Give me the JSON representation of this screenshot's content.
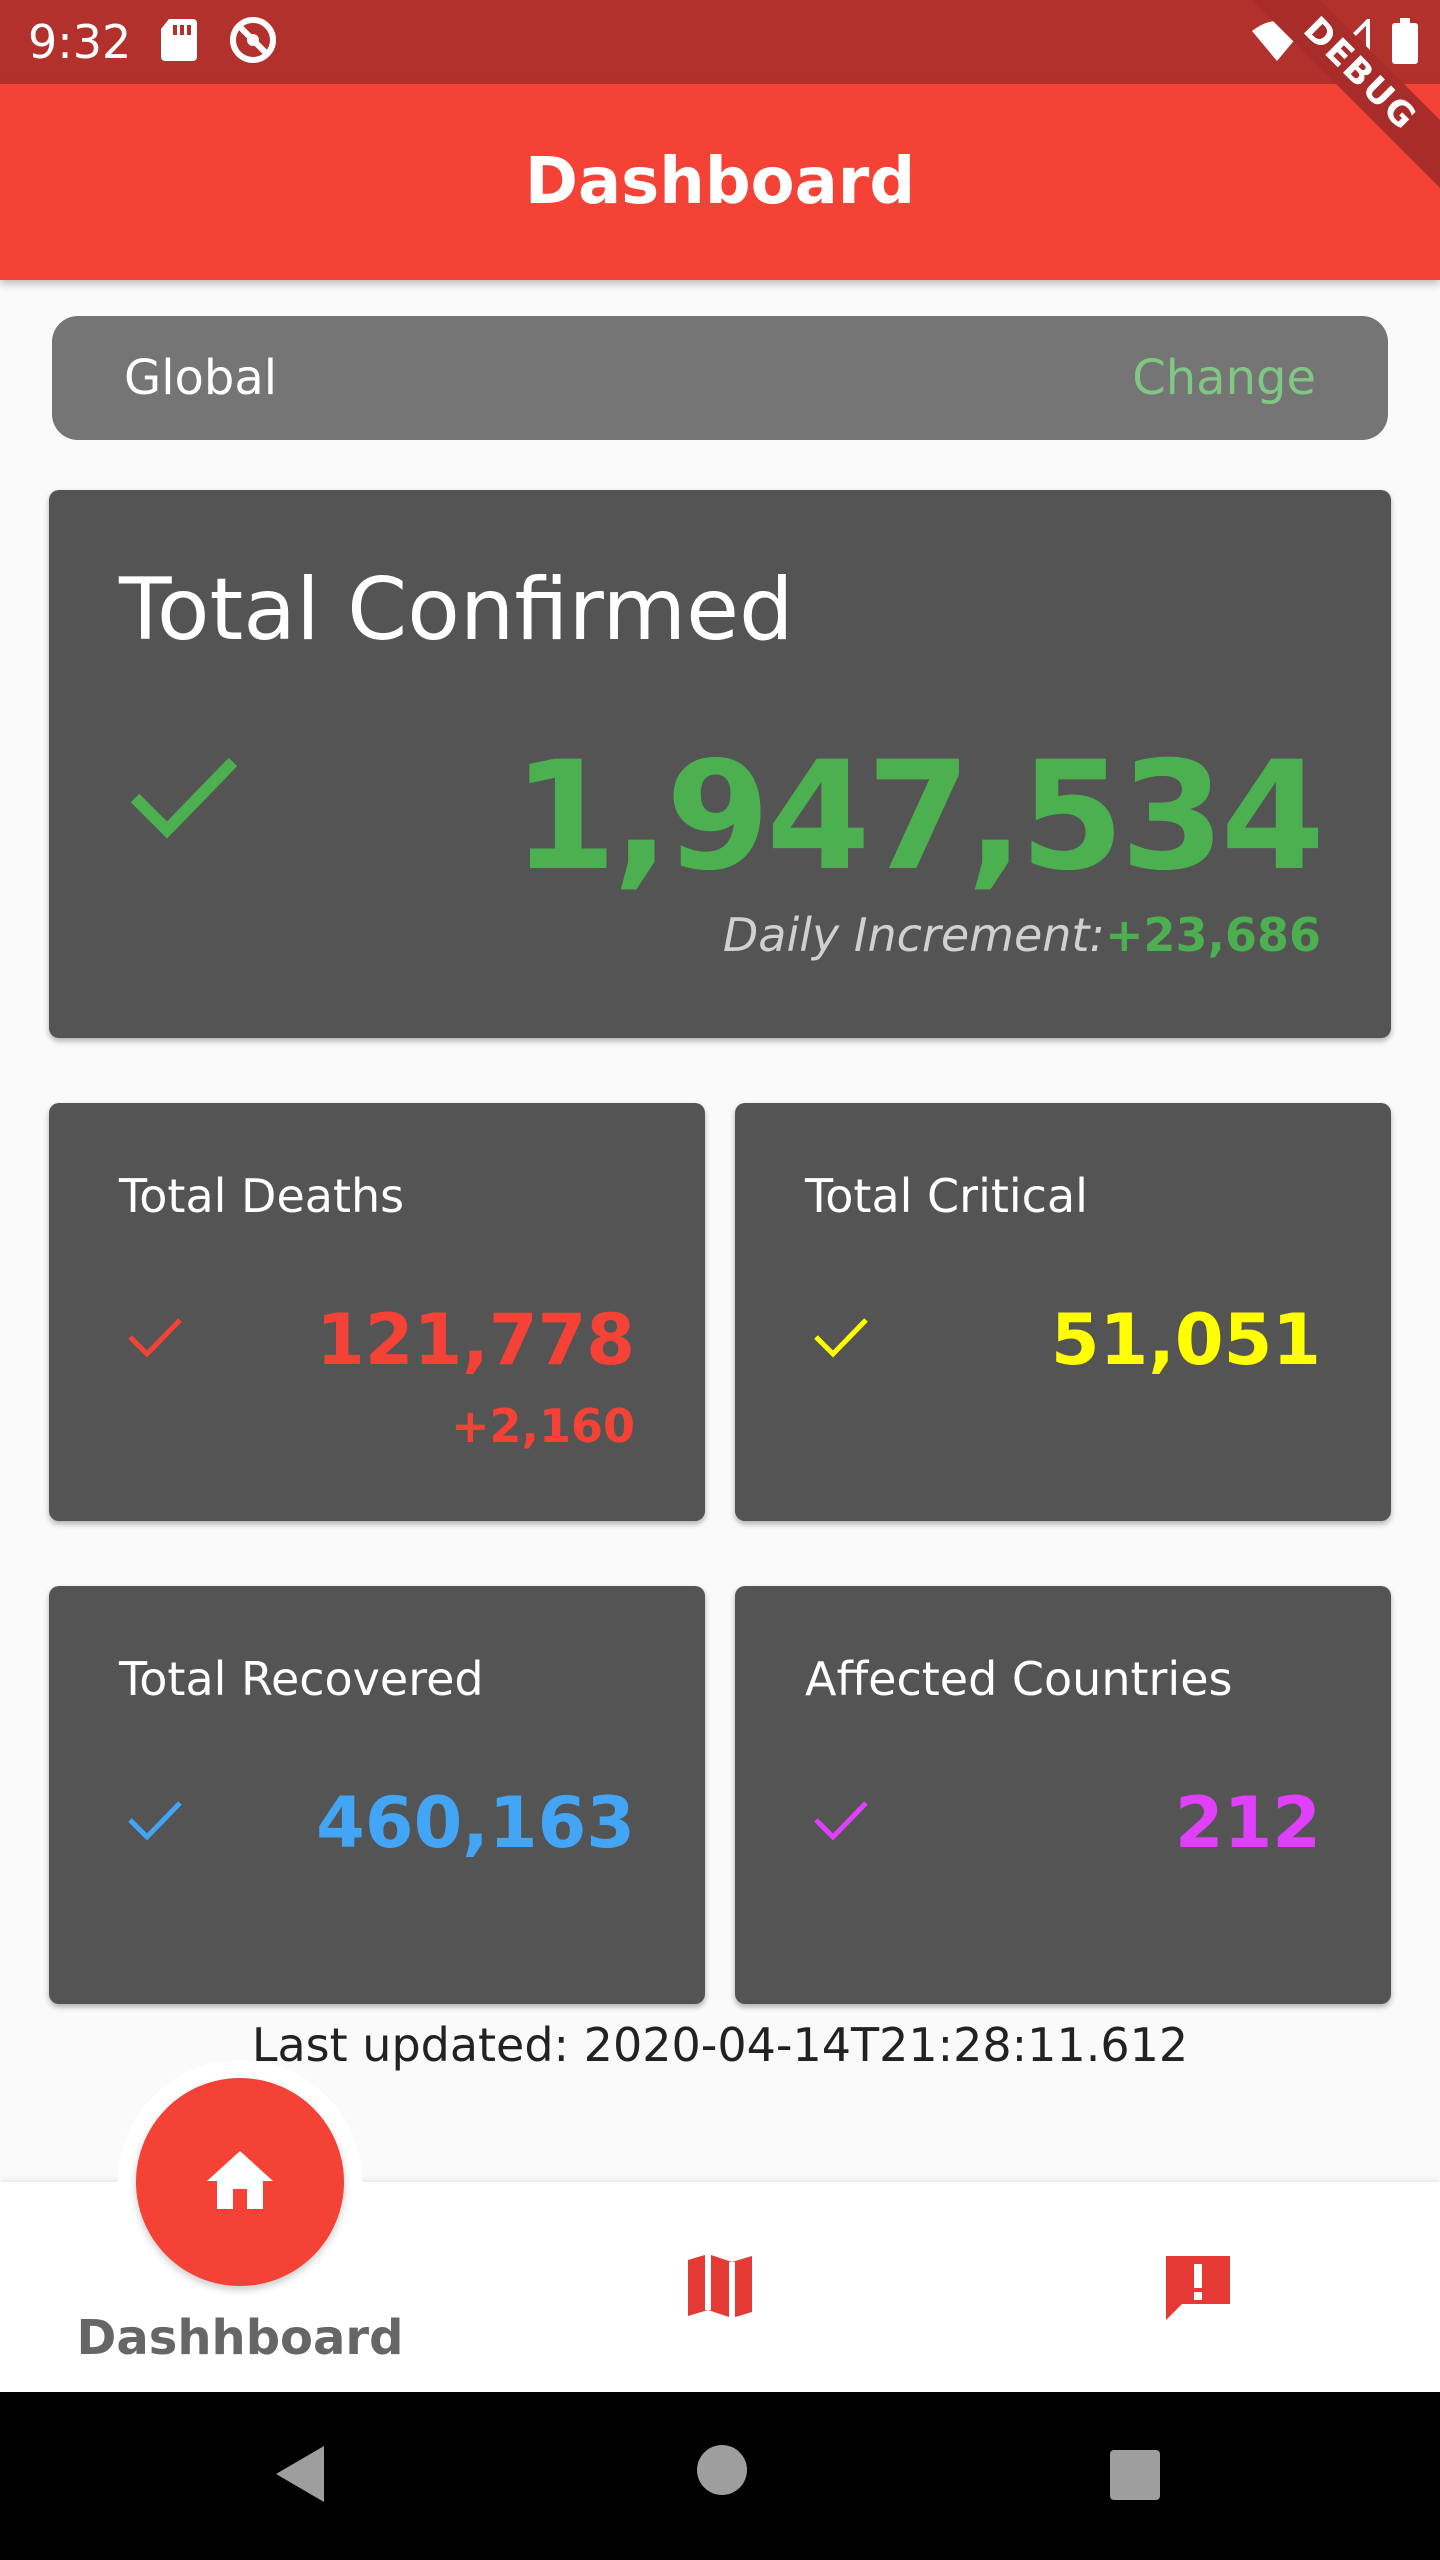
{
  "status_bar": {
    "time": "9:32",
    "icons": [
      "sd-card-icon",
      "sync-icon",
      "wifi-icon",
      "signal-icon",
      "battery-icon"
    ]
  },
  "debug_banner": "DEBUG",
  "app_bar": {
    "title": "Dashboard",
    "color": "#f44336"
  },
  "region": {
    "name": "Global",
    "change_label": "Change"
  },
  "total_confirmed": {
    "title": "Total Confirmed",
    "value": "1,947,534",
    "increment_label": "Daily Increment:",
    "increment_value": "+23,686",
    "color": "#4caf50"
  },
  "cards": {
    "deaths": {
      "title": "Total Deaths",
      "value": "121,778",
      "increment": "+2,160",
      "color": "#f44336"
    },
    "critical": {
      "title": "Total Critical",
      "value": "51,051",
      "color": "#ffff00"
    },
    "recovered": {
      "title": "Total Recovered",
      "value": "460,163",
      "color": "#42a5f5"
    },
    "countries": {
      "title": "Affected Countries",
      "value": "212",
      "color": "#e040fb"
    }
  },
  "last_updated": "Last updated: 2020-04-14T21:28:11.612",
  "bottom_nav": {
    "items": [
      {
        "label": "Dashhboard",
        "icon": "home-icon",
        "active": true
      },
      {
        "label": "",
        "icon": "map-icon",
        "active": false
      },
      {
        "label": "",
        "icon": "alert-message-icon",
        "active": false
      }
    ]
  },
  "system_nav": {
    "icons": [
      "back-icon",
      "home-circle-icon",
      "recents-icon"
    ]
  }
}
